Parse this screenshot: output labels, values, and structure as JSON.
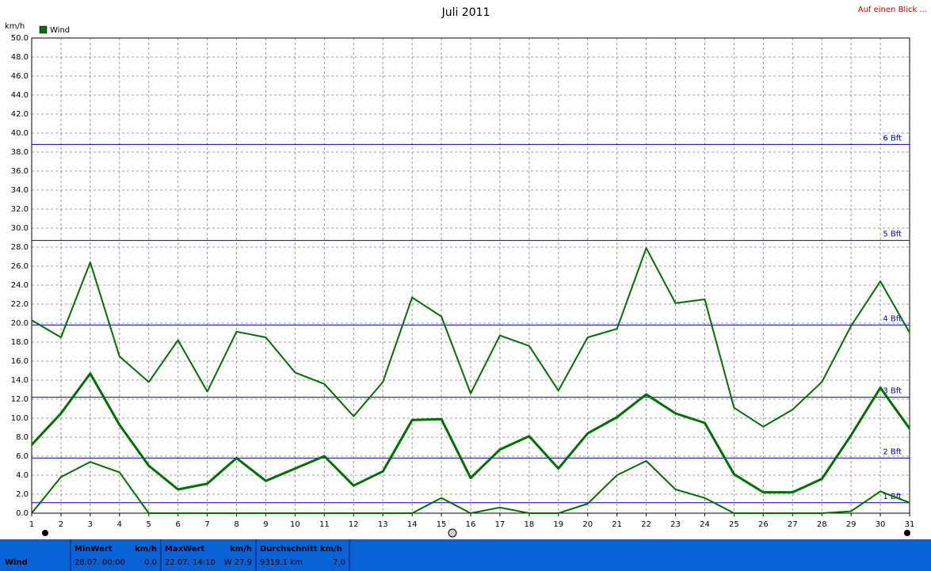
{
  "chart_data": {
    "type": "line",
    "title": "Juli 2011",
    "y_unit": "km/h",
    "legend": "Wind",
    "x": [
      1,
      2,
      3,
      4,
      5,
      6,
      7,
      8,
      9,
      10,
      11,
      12,
      13,
      14,
      15,
      16,
      17,
      18,
      19,
      20,
      21,
      22,
      23,
      24,
      25,
      26,
      27,
      28,
      29,
      30,
      31
    ],
    "xlim": [
      1,
      31
    ],
    "series": [
      {
        "color": "#007000",
        "values": [
          20.3,
          18.5,
          26.4,
          16.5,
          13.8,
          18.2,
          12.8,
          19.1,
          18.5,
          14.8,
          13.6,
          10.2,
          13.8,
          22.7,
          20.7,
          12.6,
          18.7,
          17.6,
          12.9,
          18.5,
          19.4,
          27.9,
          22.1,
          22.5,
          11.1,
          9.1,
          10.9,
          13.8,
          19.7,
          24.4,
          19.0
        ]
      },
      {
        "color": "#007000",
        "values": [
          7.2,
          10.5,
          14.7,
          9.3,
          5.0,
          2.5,
          3.1,
          5.8,
          3.4,
          4.7,
          6.0,
          2.9,
          4.4,
          9.8,
          9.9,
          3.7,
          6.7,
          8.1,
          4.7,
          8.4,
          10.1,
          12.5,
          10.5,
          9.5,
          4.1,
          2.2,
          2.2,
          3.6,
          8.2,
          13.2,
          8.9
        ]
      },
      {
        "color": "#007000",
        "values": [
          0.0,
          3.8,
          5.4,
          4.3,
          0.0,
          0.0,
          0.0,
          0.0,
          0.0,
          0.0,
          0.0,
          0.0,
          0.0,
          0.0,
          1.6,
          0.0,
          0.6,
          0.0,
          0.0,
          1.0,
          4.0,
          5.5,
          2.5,
          1.6,
          0.0,
          0.0,
          0.0,
          0.0,
          0.2,
          2.3,
          1.1
        ]
      }
    ],
    "ylim": [
      0,
      50
    ],
    "yticks": [
      {
        "value": 0,
        "label": "0.0"
      },
      {
        "value": 2,
        "label": "2.0"
      },
      {
        "value": 4,
        "label": "4.0"
      },
      {
        "value": 6,
        "label": "6.0"
      },
      {
        "value": 8,
        "label": "8.0"
      },
      {
        "value": 10,
        "label": "10.0"
      },
      {
        "value": 12,
        "label": "12.0"
      },
      {
        "value": 14,
        "label": "14.0"
      },
      {
        "value": 16,
        "label": "16.0"
      },
      {
        "value": 18,
        "label": "18.0"
      },
      {
        "value": 20,
        "label": "20.0"
      },
      {
        "value": 22,
        "label": "22.0"
      },
      {
        "value": 24,
        "label": "24.0"
      },
      {
        "value": 26,
        "label": "26.0"
      },
      {
        "value": 28,
        "label": "28.0"
      },
      {
        "value": 30,
        "label": "30.0"
      },
      {
        "value": 32,
        "label": "32.0"
      },
      {
        "value": 34,
        "label": "34.0"
      },
      {
        "value": 36,
        "label": "36.0"
      },
      {
        "value": 38,
        "label": "38.0"
      },
      {
        "value": 40,
        "label": "40.0"
      },
      {
        "value": 42,
        "label": "42.0"
      },
      {
        "value": 44,
        "label": "44.0"
      },
      {
        "value": 46,
        "label": "46.0"
      },
      {
        "value": 48,
        "label": "48.0"
      },
      {
        "value": 50,
        "label": "50.0"
      }
    ],
    "grid": true,
    "bft_color": "#0000c0",
    "bft_lines": [
      {
        "value": 1.1,
        "label": "1 Bft"
      },
      {
        "value": 5.8,
        "label": "2 Bft"
      },
      {
        "value": 12.2,
        "label": "3 Bft"
      },
      {
        "value": 19.8,
        "label": "4 Bft"
      },
      {
        "value": 28.7,
        "label": "5 Bft"
      },
      {
        "value": 38.8,
        "label": "6 Bft"
      }
    ]
  },
  "link": "Auf einen Blick ...",
  "status": {
    "label": "Wind",
    "panels": [
      {
        "title": "MinWert",
        "unit": "km/h",
        "date": "28.07. 00:00",
        "value": "0.0"
      },
      {
        "title": "MaxWert",
        "unit": "km/h",
        "date": "22.07. 14:10",
        "value": "W 27.9"
      },
      {
        "title": "Durchschnitt km/h",
        "unit": "",
        "date": "9319.1 km",
        "value": "7.0"
      }
    ]
  }
}
